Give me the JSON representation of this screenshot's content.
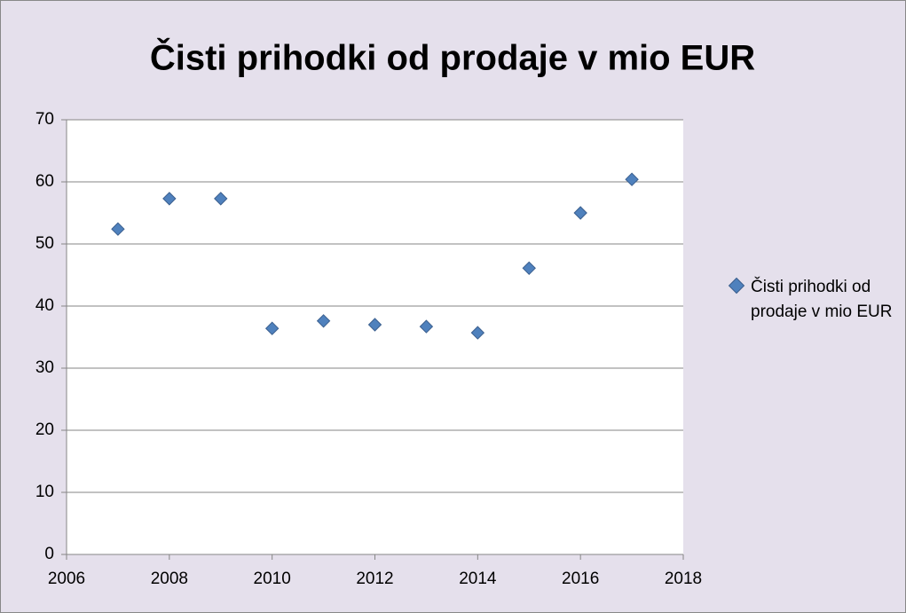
{
  "chart_data": {
    "type": "scatter",
    "title": "Čisti prihodki od prodaje v mio EUR",
    "x": [
      2007,
      2008,
      2009,
      2010,
      2011,
      2012,
      2013,
      2014,
      2015,
      2016,
      2017
    ],
    "series": [
      {
        "name": "Čisti prihodki od prodaje v mio EUR",
        "color": "#4f81bd",
        "values": [
          52.4,
          57.3,
          57.3,
          36.4,
          37.6,
          37.0,
          36.7,
          35.7,
          46.1,
          55.0,
          60.4
        ]
      }
    ],
    "xlim": [
      2006,
      2018
    ],
    "xticks": [
      2006,
      2008,
      2010,
      2012,
      2014,
      2016,
      2018
    ],
    "ylim": [
      0,
      70
    ],
    "yticks": [
      0,
      10,
      20,
      30,
      40,
      50,
      60,
      70
    ],
    "grid": true,
    "legend": "right"
  }
}
